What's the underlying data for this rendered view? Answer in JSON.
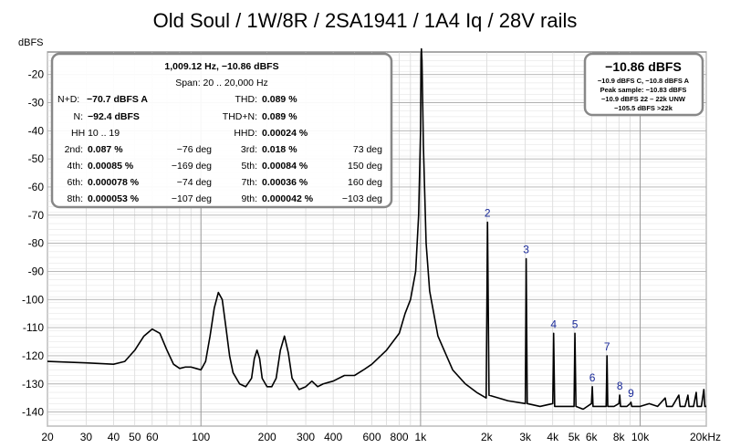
{
  "chart_data": {
    "type": "line",
    "title": "Old Soul / 1W/8R / 2SA1941 / 1A4 Iq / 28V rails",
    "ylabel": "dBFS",
    "x_scale": "log",
    "xlim": [
      20,
      20000
    ],
    "ylim": [
      -145,
      -12
    ],
    "grid": true,
    "x_ticks": [
      {
        "v": 20,
        "label": "20"
      },
      {
        "v": 30,
        "label": "30"
      },
      {
        "v": 40,
        "label": "40"
      },
      {
        "v": 50,
        "label": "50"
      },
      {
        "v": 60,
        "label": "60"
      },
      {
        "v": 100,
        "label": "100"
      },
      {
        "v": 200,
        "label": "200"
      },
      {
        "v": 300,
        "label": "300"
      },
      {
        "v": 400,
        "label": "400"
      },
      {
        "v": 600,
        "label": "600"
      },
      {
        "v": 800,
        "label": "800"
      },
      {
        "v": 1000,
        "label": "1k"
      },
      {
        "v": 2000,
        "label": "2k"
      },
      {
        "v": 3000,
        "label": "3k"
      },
      {
        "v": 4000,
        "label": "4k"
      },
      {
        "v": 5000,
        "label": "5k"
      },
      {
        "v": 6000,
        "label": "6k"
      },
      {
        "v": 8000,
        "label": "8k"
      },
      {
        "v": 10000,
        "label": "10k"
      },
      {
        "v": 20000,
        "label": "20kHz"
      }
    ],
    "y_ticks": [
      {
        "v": -20,
        "label": "-20"
      },
      {
        "v": -30,
        "label": "-30"
      },
      {
        "v": -40,
        "label": "-40"
      },
      {
        "v": -50,
        "label": "-50"
      },
      {
        "v": -60,
        "label": "-60"
      },
      {
        "v": -70,
        "label": "-70"
      },
      {
        "v": -80,
        "label": "-80"
      },
      {
        "v": -90,
        "label": "-90"
      },
      {
        "v": -100,
        "label": "-100"
      },
      {
        "v": -110,
        "label": "-110"
      },
      {
        "v": -120,
        "label": "-120"
      },
      {
        "v": -130,
        "label": "-130"
      },
      {
        "v": -140,
        "label": "-140"
      }
    ],
    "series": [
      {
        "color": "#000000",
        "points": [
          [
            20,
            -122
          ],
          [
            30,
            -122.5
          ],
          [
            40,
            -123
          ],
          [
            45,
            -122
          ],
          [
            50,
            -118
          ],
          [
            55,
            -113
          ],
          [
            60,
            -110.5
          ],
          [
            65,
            -112
          ],
          [
            70,
            -118
          ],
          [
            75,
            -123
          ],
          [
            80,
            -124.5
          ],
          [
            85,
            -124
          ],
          [
            90,
            -124
          ],
          [
            95,
            -124.5
          ],
          [
            100,
            -125
          ],
          [
            105,
            -122
          ],
          [
            110,
            -113
          ],
          [
            115,
            -103
          ],
          [
            120,
            -97.5
          ],
          [
            125,
            -100
          ],
          [
            130,
            -110
          ],
          [
            135,
            -120
          ],
          [
            140,
            -126
          ],
          [
            150,
            -130
          ],
          [
            160,
            -131
          ],
          [
            170,
            -128
          ],
          [
            175,
            -121
          ],
          [
            180,
            -118
          ],
          [
            185,
            -121
          ],
          [
            190,
            -128
          ],
          [
            200,
            -131
          ],
          [
            210,
            -131
          ],
          [
            220,
            -128
          ],
          [
            230,
            -118
          ],
          [
            240,
            -113
          ],
          [
            250,
            -119
          ],
          [
            260,
            -128
          ],
          [
            280,
            -132
          ],
          [
            300,
            -131
          ],
          [
            320,
            -129
          ],
          [
            340,
            -131
          ],
          [
            360,
            -130
          ],
          [
            400,
            -129
          ],
          [
            450,
            -127
          ],
          [
            500,
            -127
          ],
          [
            550,
            -125
          ],
          [
            600,
            -123
          ],
          [
            700,
            -118
          ],
          [
            800,
            -112
          ],
          [
            850,
            -105
          ],
          [
            900,
            -100
          ],
          [
            950,
            -90
          ],
          [
            980,
            -70
          ],
          [
            1000,
            -40
          ],
          [
            1005,
            -15
          ],
          [
            1009,
            -10.86
          ],
          [
            1015,
            -15
          ],
          [
            1030,
            -45
          ],
          [
            1060,
            -80
          ],
          [
            1100,
            -97
          ],
          [
            1200,
            -113
          ],
          [
            1400,
            -125
          ],
          [
            1600,
            -130
          ],
          [
            1800,
            -133
          ],
          [
            1990,
            -135
          ],
          [
            2018,
            -72.5
          ],
          [
            2050,
            -134
          ],
          [
            2500,
            -136
          ],
          [
            3000,
            -137
          ],
          [
            3027,
            -85.5
          ],
          [
            3060,
            -137
          ],
          [
            3500,
            -138
          ],
          [
            4000,
            -137
          ],
          [
            4036,
            -112
          ],
          [
            4080,
            -138
          ],
          [
            4500,
            -138
          ],
          [
            5000,
            -138
          ],
          [
            5046,
            -112
          ],
          [
            5100,
            -138
          ],
          [
            5500,
            -139
          ],
          [
            6000,
            -137
          ],
          [
            6055,
            -131
          ],
          [
            6100,
            -138
          ],
          [
            6500,
            -138
          ],
          [
            7000,
            -138
          ],
          [
            7064,
            -120
          ],
          [
            7120,
            -138
          ],
          [
            7600,
            -138
          ],
          [
            8000,
            -137
          ],
          [
            8073,
            -134
          ],
          [
            8140,
            -138
          ],
          [
            8700,
            -138
          ],
          [
            9000,
            -137
          ],
          [
            9082,
            -136.5
          ],
          [
            9150,
            -138
          ],
          [
            10000,
            -138
          ],
          [
            11000,
            -137
          ],
          [
            12000,
            -138
          ],
          [
            13000,
            -135
          ],
          [
            13200,
            -138
          ],
          [
            14000,
            -138
          ],
          [
            15000,
            -134
          ],
          [
            15200,
            -138
          ],
          [
            16000,
            -138
          ],
          [
            16500,
            -134
          ],
          [
            16700,
            -138
          ],
          [
            17500,
            -138
          ],
          [
            18000,
            -133
          ],
          [
            18200,
            -138
          ],
          [
            19000,
            -138
          ],
          [
            19500,
            -132
          ],
          [
            19700,
            -138
          ],
          [
            20000,
            -138
          ]
        ]
      }
    ],
    "harmonic_markers": [
      {
        "label": "2",
        "freq": 2018,
        "db": -72.5
      },
      {
        "label": "3",
        "freq": 3027,
        "db": -85.5
      },
      {
        "label": "4",
        "freq": 4036,
        "db": -112
      },
      {
        "label": "5",
        "freq": 5046,
        "db": -112
      },
      {
        "label": "6",
        "freq": 6055,
        "db": -131
      },
      {
        "label": "7",
        "freq": 7064,
        "db": -120
      },
      {
        "label": "8",
        "freq": 8073,
        "db": -134
      },
      {
        "label": "9",
        "freq": 9082,
        "db": -136.5
      }
    ],
    "info_box": {
      "header": "1,009.12 Hz, −10.86 dBFS",
      "span": "Span: 20 .. 20,000 Hz",
      "nd_label": "N+D:",
      "nd_value": "−70.7 dBFS A",
      "thd_label": "THD:",
      "thd_value": "0.089 %",
      "n_label": "N:",
      "n_value": "−92.4 dBFS",
      "thdn_label": "THD+N:",
      "thdn_value": "0.089 %",
      "hh_text": "HH 10 .. 19",
      "hhd_label": "HHD:",
      "hhd_value": "0.00024 %",
      "harmonics": [
        {
          "label": "2nd:",
          "value": "0.087 %",
          "phase": "−76 deg"
        },
        {
          "label": "3rd:",
          "value": "0.018 %",
          "phase": "73 deg"
        },
        {
          "label": "4th:",
          "value": "0.00085 %",
          "phase": "−169 deg"
        },
        {
          "label": "5th:",
          "value": "0.00084 %",
          "phase": "150 deg"
        },
        {
          "label": "6th:",
          "value": "0.000078 %",
          "phase": "−74 deg"
        },
        {
          "label": "7th:",
          "value": "0.00036 %",
          "phase": "160 deg"
        },
        {
          "label": "8th:",
          "value": "0.000053 %",
          "phase": "−107 deg"
        },
        {
          "label": "9th:",
          "value": "0.000042 %",
          "phase": "−103 deg"
        }
      ]
    },
    "level_box": {
      "main": "−10.86 dBFS",
      "lines": [
        "−10.9 dBFS C, −10.8 dBFS A",
        "Peak sample: −10.83 dBFS",
        "−10.9 dBFS 22 – 22k UNW",
        "−105.5 dBFS >22k"
      ]
    },
    "colors": {
      "trace": "#000000",
      "grid": "#cccccc",
      "grid_major": "#b0b0b0",
      "harmonic_label": "#1a2a9a",
      "box_border": "#888888"
    }
  }
}
